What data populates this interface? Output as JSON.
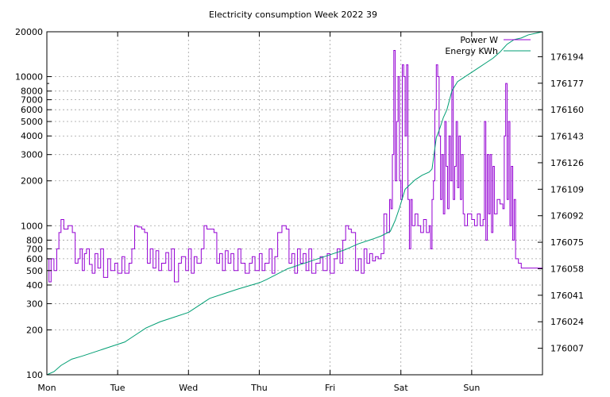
{
  "chart_data": {
    "type": "line",
    "title": "Electricity consumption Week 2022 39",
    "xlabel": "",
    "ylabel": "",
    "x_tick_labels": [
      "Mon",
      "Tue",
      "Wed",
      "Thu",
      "Fri",
      "Sat",
      "Sun"
    ],
    "x_range_days": [
      0,
      7
    ],
    "y_left": {
      "scale": "log",
      "range": [
        100,
        20000
      ],
      "tick_values": [
        100,
        200,
        300,
        400,
        500,
        600,
        700,
        800,
        1000,
        2000,
        3000,
        4000,
        5000,
        6000,
        7000,
        8000,
        10000,
        20000
      ],
      "tick_labels": [
        "100",
        "200",
        "300",
        "400",
        "500",
        "600",
        "700",
        "800",
        "1000",
        "2000",
        "3000",
        "4000",
        "5000",
        "6000",
        "7000",
        "8000",
        "10000",
        "20000"
      ]
    },
    "y_right": {
      "scale": "linear",
      "range": [
        175990,
        176210
      ],
      "tick_values": [
        176007,
        176024,
        176041,
        176058,
        176075,
        176092,
        176109,
        176126,
        176143,
        176160,
        176177,
        176194
      ],
      "tick_labels": [
        "176007",
        "176024",
        "176041",
        "176058",
        "176075",
        "176092",
        "176109",
        "176126",
        "176143",
        "176160",
        "176177",
        "176194"
      ]
    },
    "grid": true,
    "legend_position": "top-right",
    "series": [
      {
        "name": "Power W",
        "color": "#9400d3",
        "axis": "left",
        "step": true,
        "points": [
          [
            0.0,
            600
          ],
          [
            0.03,
            420
          ],
          [
            0.06,
            600
          ],
          [
            0.1,
            500
          ],
          [
            0.14,
            700
          ],
          [
            0.17,
            900
          ],
          [
            0.2,
            1100
          ],
          [
            0.24,
            950
          ],
          [
            0.3,
            1000
          ],
          [
            0.36,
            900
          ],
          [
            0.4,
            560
          ],
          [
            0.44,
            600
          ],
          [
            0.47,
            700
          ],
          [
            0.5,
            500
          ],
          [
            0.53,
            650
          ],
          [
            0.56,
            700
          ],
          [
            0.6,
            550
          ],
          [
            0.64,
            480
          ],
          [
            0.68,
            650
          ],
          [
            0.72,
            520
          ],
          [
            0.76,
            700
          ],
          [
            0.8,
            450
          ],
          [
            0.86,
            600
          ],
          [
            0.9,
            500
          ],
          [
            0.96,
            560
          ],
          [
            1.0,
            480
          ],
          [
            1.06,
            620
          ],
          [
            1.1,
            480
          ],
          [
            1.16,
            560
          ],
          [
            1.2,
            700
          ],
          [
            1.24,
            1000
          ],
          [
            1.28,
            980
          ],
          [
            1.34,
            950
          ],
          [
            1.38,
            900
          ],
          [
            1.42,
            560
          ],
          [
            1.46,
            700
          ],
          [
            1.5,
            520
          ],
          [
            1.54,
            680
          ],
          [
            1.58,
            500
          ],
          [
            1.62,
            560
          ],
          [
            1.68,
            660
          ],
          [
            1.72,
            500
          ],
          [
            1.76,
            700
          ],
          [
            1.8,
            420
          ],
          [
            1.86,
            560
          ],
          [
            1.9,
            620
          ],
          [
            1.96,
            500
          ],
          [
            2.0,
            700
          ],
          [
            2.04,
            480
          ],
          [
            2.08,
            620
          ],
          [
            2.12,
            560
          ],
          [
            2.18,
            700
          ],
          [
            2.22,
            1000
          ],
          [
            2.26,
            950
          ],
          [
            2.32,
            950
          ],
          [
            2.36,
            900
          ],
          [
            2.4,
            560
          ],
          [
            2.44,
            650
          ],
          [
            2.48,
            500
          ],
          [
            2.52,
            680
          ],
          [
            2.56,
            560
          ],
          [
            2.6,
            650
          ],
          [
            2.64,
            500
          ],
          [
            2.7,
            700
          ],
          [
            2.74,
            560
          ],
          [
            2.8,
            480
          ],
          [
            2.86,
            560
          ],
          [
            2.9,
            620
          ],
          [
            2.94,
            500
          ],
          [
            3.0,
            650
          ],
          [
            3.04,
            500
          ],
          [
            3.08,
            560
          ],
          [
            3.14,
            700
          ],
          [
            3.18,
            480
          ],
          [
            3.22,
            620
          ],
          [
            3.26,
            900
          ],
          [
            3.32,
            1000
          ],
          [
            3.38,
            950
          ],
          [
            3.42,
            560
          ],
          [
            3.46,
            650
          ],
          [
            3.5,
            480
          ],
          [
            3.54,
            700
          ],
          [
            3.58,
            560
          ],
          [
            3.62,
            650
          ],
          [
            3.66,
            500
          ],
          [
            3.7,
            700
          ],
          [
            3.74,
            480
          ],
          [
            3.8,
            560
          ],
          [
            3.86,
            620
          ],
          [
            3.9,
            500
          ],
          [
            3.96,
            650
          ],
          [
            4.0,
            480
          ],
          [
            4.06,
            600
          ],
          [
            4.1,
            700
          ],
          [
            4.14,
            560
          ],
          [
            4.18,
            800
          ],
          [
            4.22,
            1000
          ],
          [
            4.26,
            950
          ],
          [
            4.3,
            900
          ],
          [
            4.36,
            500
          ],
          [
            4.4,
            600
          ],
          [
            4.44,
            480
          ],
          [
            4.48,
            700
          ],
          [
            4.52,
            560
          ],
          [
            4.56,
            650
          ],
          [
            4.6,
            580
          ],
          [
            4.64,
            620
          ],
          [
            4.68,
            600
          ],
          [
            4.72,
            650
          ],
          [
            4.76,
            1200
          ],
          [
            4.8,
            900
          ],
          [
            4.84,
            1500
          ],
          [
            4.86,
            1300
          ],
          [
            4.88,
            3000
          ],
          [
            4.9,
            15000
          ],
          [
            4.92,
            2000
          ],
          [
            4.94,
            5000
          ],
          [
            4.96,
            10000
          ],
          [
            4.98,
            2000
          ],
          [
            5.0,
            1500
          ],
          [
            5.02,
            12000
          ],
          [
            5.04,
            10000
          ],
          [
            5.06,
            4000
          ],
          [
            5.08,
            12000
          ],
          [
            5.1,
            1500
          ],
          [
            5.12,
            700
          ],
          [
            5.14,
            1500
          ],
          [
            5.16,
            1000
          ],
          [
            5.2,
            1200
          ],
          [
            5.24,
            1000
          ],
          [
            5.28,
            900
          ],
          [
            5.32,
            1100
          ],
          [
            5.36,
            900
          ],
          [
            5.4,
            1000
          ],
          [
            5.42,
            700
          ],
          [
            5.44,
            1500
          ],
          [
            5.46,
            2000
          ],
          [
            5.48,
            6000
          ],
          [
            5.5,
            12000
          ],
          [
            5.52,
            10000
          ],
          [
            5.54,
            4000
          ],
          [
            5.56,
            1500
          ],
          [
            5.58,
            3000
          ],
          [
            5.6,
            1200
          ],
          [
            5.62,
            5000
          ],
          [
            5.64,
            2500
          ],
          [
            5.66,
            1300
          ],
          [
            5.68,
            4000
          ],
          [
            5.7,
            2000
          ],
          [
            5.72,
            10000
          ],
          [
            5.74,
            1500
          ],
          [
            5.76,
            2500
          ],
          [
            5.78,
            5000
          ],
          [
            5.8,
            1800
          ],
          [
            5.82,
            4000
          ],
          [
            5.84,
            1500
          ],
          [
            5.86,
            3000
          ],
          [
            5.88,
            1200
          ],
          [
            5.9,
            1000
          ],
          [
            5.94,
            1200
          ],
          [
            6.0,
            1100
          ],
          [
            6.04,
            1000
          ],
          [
            6.08,
            1200
          ],
          [
            6.12,
            1000
          ],
          [
            6.16,
            1100
          ],
          [
            6.18,
            5000
          ],
          [
            6.2,
            800
          ],
          [
            6.22,
            3000
          ],
          [
            6.24,
            1200
          ],
          [
            6.26,
            3000
          ],
          [
            6.28,
            900
          ],
          [
            6.3,
            2500
          ],
          [
            6.32,
            1200
          ],
          [
            6.36,
            1500
          ],
          [
            6.4,
            1400
          ],
          [
            6.44,
            1300
          ],
          [
            6.46,
            4000
          ],
          [
            6.48,
            9000
          ],
          [
            6.5,
            1500
          ],
          [
            6.52,
            5000
          ],
          [
            6.54,
            1000
          ],
          [
            6.56,
            2500
          ],
          [
            6.58,
            800
          ],
          [
            6.6,
            1500
          ],
          [
            6.62,
            600
          ],
          [
            6.66,
            560
          ],
          [
            6.7,
            520
          ],
          [
            7.0,
            520
          ]
        ]
      },
      {
        "name": "Energy KWh",
        "color": "#009e73",
        "axis": "right",
        "step": false,
        "points": [
          [
            0.0,
            175990
          ],
          [
            0.1,
            175992
          ],
          [
            0.2,
            175996
          ],
          [
            0.35,
            176000
          ],
          [
            0.5,
            176002
          ],
          [
            0.7,
            176005
          ],
          [
            0.9,
            176008
          ],
          [
            1.1,
            176011
          ],
          [
            1.2,
            176014
          ],
          [
            1.4,
            176020
          ],
          [
            1.6,
            176024
          ],
          [
            1.8,
            176027
          ],
          [
            2.0,
            176030
          ],
          [
            2.1,
            176033
          ],
          [
            2.3,
            176039
          ],
          [
            2.5,
            176042
          ],
          [
            2.7,
            176045
          ],
          [
            3.0,
            176049
          ],
          [
            3.1,
            176051
          ],
          [
            3.4,
            176058
          ],
          [
            3.6,
            176061
          ],
          [
            3.8,
            176064
          ],
          [
            4.0,
            176067
          ],
          [
            4.2,
            176070
          ],
          [
            4.4,
            176074
          ],
          [
            4.6,
            176077
          ],
          [
            4.72,
            176079
          ],
          [
            4.85,
            176082
          ],
          [
            4.92,
            176089
          ],
          [
            4.98,
            176097
          ],
          [
            5.06,
            176109
          ],
          [
            5.2,
            176115
          ],
          [
            5.3,
            176118
          ],
          [
            5.4,
            176120
          ],
          [
            5.44,
            176122
          ],
          [
            5.5,
            176142
          ],
          [
            5.55,
            176148
          ],
          [
            5.6,
            176155
          ],
          [
            5.65,
            176160
          ],
          [
            5.72,
            176172
          ],
          [
            5.8,
            176178
          ],
          [
            5.9,
            176181
          ],
          [
            6.0,
            176184
          ],
          [
            6.1,
            176187
          ],
          [
            6.2,
            176190
          ],
          [
            6.3,
            176193
          ],
          [
            6.4,
            176197
          ],
          [
            6.5,
            176202
          ],
          [
            6.6,
            176205
          ],
          [
            6.7,
            176206
          ],
          [
            6.8,
            176208
          ],
          [
            6.9,
            176209
          ],
          [
            7.0,
            176210
          ]
        ]
      }
    ]
  }
}
